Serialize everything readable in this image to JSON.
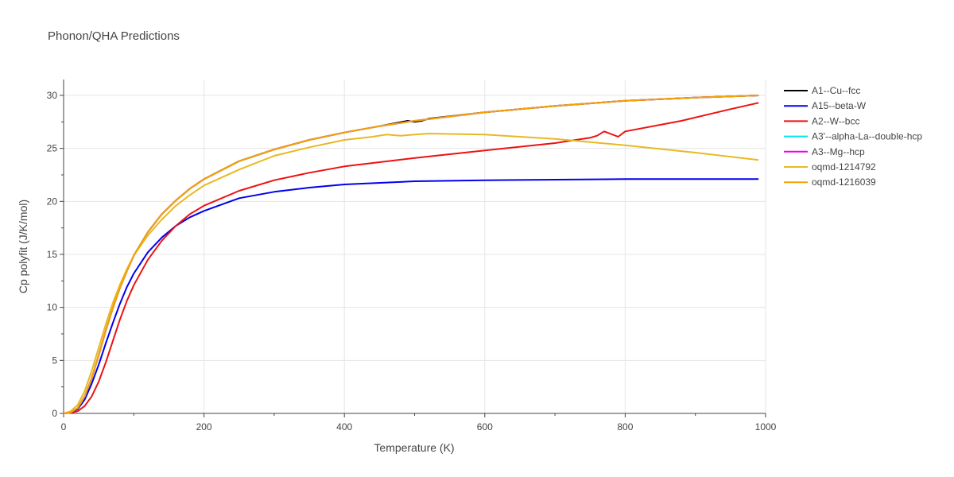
{
  "chart_data": {
    "type": "line",
    "title": "Phonon/QHA Predictions",
    "xlabel": "Temperature (K)",
    "ylabel": "Cp polyfit (J/K/mol)",
    "xlim": [
      0,
      1000
    ],
    "ylim": [
      0,
      31.5
    ],
    "xticks": [
      0,
      200,
      400,
      600,
      800,
      1000
    ],
    "yticks": [
      0,
      5,
      10,
      15,
      20,
      25,
      30
    ],
    "grid": true,
    "legend_position": "top-right",
    "series": [
      {
        "name": "A1--Cu--fcc",
        "color": "#000000",
        "points": [
          [
            0,
            0
          ],
          [
            10,
            0.1
          ],
          [
            20,
            0.5
          ],
          [
            30,
            1.6
          ],
          [
            40,
            3.3
          ],
          [
            50,
            5.5
          ],
          [
            60,
            7.8
          ],
          [
            70,
            9.9
          ],
          [
            80,
            11.8
          ],
          [
            90,
            13.4
          ],
          [
            100,
            14.9
          ],
          [
            120,
            17.1
          ],
          [
            140,
            18.8
          ],
          [
            160,
            20.1
          ],
          [
            180,
            21.2
          ],
          [
            200,
            22.1
          ],
          [
            250,
            23.8
          ],
          [
            300,
            24.9
          ],
          [
            350,
            25.8
          ],
          [
            400,
            26.5
          ],
          [
            450,
            27.1
          ],
          [
            490,
            27.6
          ],
          [
            500,
            27.5
          ],
          [
            510,
            27.6
          ],
          [
            520,
            27.8
          ],
          [
            600,
            28.4
          ],
          [
            700,
            29.0
          ],
          [
            800,
            29.5
          ],
          [
            900,
            29.8
          ],
          [
            990,
            30.0
          ]
        ]
      },
      {
        "name": "A15--beta-W",
        "color": "#0000ee",
        "points": [
          [
            0,
            0
          ],
          [
            10,
            0.1
          ],
          [
            20,
            0.4
          ],
          [
            30,
            1.3
          ],
          [
            40,
            2.8
          ],
          [
            50,
            4.6
          ],
          [
            60,
            6.6
          ],
          [
            70,
            8.5
          ],
          [
            80,
            10.3
          ],
          [
            90,
            11.9
          ],
          [
            100,
            13.2
          ],
          [
            120,
            15.2
          ],
          [
            140,
            16.6
          ],
          [
            160,
            17.7
          ],
          [
            180,
            18.5
          ],
          [
            200,
            19.1
          ],
          [
            250,
            20.3
          ],
          [
            300,
            20.9
          ],
          [
            350,
            21.3
          ],
          [
            400,
            21.6
          ],
          [
            500,
            21.9
          ],
          [
            600,
            22.0
          ],
          [
            700,
            22.05
          ],
          [
            800,
            22.1
          ],
          [
            900,
            22.1
          ],
          [
            990,
            22.1
          ]
        ]
      },
      {
        "name": "A2--W--bcc",
        "color": "#ee1111",
        "points": [
          [
            0,
            0
          ],
          [
            10,
            0.05
          ],
          [
            20,
            0.2
          ],
          [
            30,
            0.7
          ],
          [
            40,
            1.6
          ],
          [
            50,
            3.0
          ],
          [
            60,
            4.8
          ],
          [
            70,
            6.8
          ],
          [
            80,
            8.8
          ],
          [
            90,
            10.6
          ],
          [
            100,
            12.1
          ],
          [
            120,
            14.5
          ],
          [
            140,
            16.3
          ],
          [
            160,
            17.7
          ],
          [
            180,
            18.8
          ],
          [
            200,
            19.6
          ],
          [
            250,
            21.0
          ],
          [
            300,
            22.0
          ],
          [
            350,
            22.7
          ],
          [
            400,
            23.3
          ],
          [
            500,
            24.1
          ],
          [
            600,
            24.8
          ],
          [
            700,
            25.5
          ],
          [
            750,
            26.0
          ],
          [
            760,
            26.2
          ],
          [
            770,
            26.6
          ],
          [
            790,
            26.1
          ],
          [
            800,
            26.6
          ],
          [
            880,
            27.6
          ],
          [
            950,
            28.7
          ],
          [
            990,
            29.3
          ]
        ]
      },
      {
        "name": "A3'--alpha-La--double-hcp",
        "color": "#00e5ee",
        "points": [
          [
            0,
            0
          ],
          [
            10,
            0.1
          ],
          [
            20,
            0.5
          ],
          [
            30,
            1.6
          ],
          [
            40,
            3.3
          ],
          [
            50,
            5.5
          ],
          [
            60,
            7.8
          ],
          [
            70,
            9.9
          ],
          [
            80,
            11.8
          ],
          [
            90,
            13.4
          ],
          [
            100,
            14.9
          ],
          [
            120,
            17.1
          ],
          [
            140,
            18.8
          ],
          [
            160,
            20.1
          ],
          [
            180,
            21.2
          ],
          [
            200,
            22.1
          ],
          [
            250,
            23.8
          ],
          [
            300,
            24.9
          ],
          [
            350,
            25.8
          ],
          [
            400,
            26.5
          ],
          [
            450,
            27.1
          ],
          [
            500,
            27.6
          ],
          [
            600,
            28.4
          ],
          [
            700,
            29.0
          ],
          [
            800,
            29.5
          ],
          [
            900,
            29.8
          ],
          [
            990,
            30.0
          ]
        ]
      },
      {
        "name": "A3--Mg--hcp",
        "color": "#ee00ee",
        "points": [
          [
            0,
            0
          ],
          [
            10,
            0.1
          ],
          [
            20,
            0.5
          ],
          [
            30,
            1.6
          ],
          [
            40,
            3.3
          ],
          [
            50,
            5.5
          ],
          [
            60,
            7.8
          ],
          [
            70,
            9.9
          ],
          [
            80,
            11.8
          ],
          [
            90,
            13.4
          ],
          [
            100,
            14.9
          ],
          [
            120,
            17.1
          ],
          [
            140,
            18.8
          ],
          [
            160,
            20.1
          ],
          [
            180,
            21.2
          ],
          [
            200,
            22.1
          ],
          [
            250,
            23.8
          ],
          [
            300,
            24.9
          ],
          [
            350,
            25.8
          ],
          [
            400,
            26.5
          ],
          [
            450,
            27.1
          ],
          [
            500,
            27.6
          ],
          [
            600,
            28.4
          ],
          [
            700,
            29.0
          ],
          [
            800,
            29.5
          ],
          [
            900,
            29.8
          ],
          [
            990,
            30.0
          ]
        ]
      },
      {
        "name": "oqmd-1214792",
        "color": "#e8b923",
        "points": [
          [
            0,
            0
          ],
          [
            10,
            0.2
          ],
          [
            20,
            0.8
          ],
          [
            30,
            2.1
          ],
          [
            40,
            4.0
          ],
          [
            50,
            6.2
          ],
          [
            60,
            8.4
          ],
          [
            70,
            10.4
          ],
          [
            80,
            12.1
          ],
          [
            90,
            13.6
          ],
          [
            100,
            14.9
          ],
          [
            120,
            16.8
          ],
          [
            140,
            18.3
          ],
          [
            160,
            19.6
          ],
          [
            180,
            20.6
          ],
          [
            200,
            21.5
          ],
          [
            250,
            23.0
          ],
          [
            300,
            24.3
          ],
          [
            350,
            25.1
          ],
          [
            400,
            25.8
          ],
          [
            440,
            26.1
          ],
          [
            460,
            26.3
          ],
          [
            480,
            26.2
          ],
          [
            500,
            26.3
          ],
          [
            520,
            26.4
          ],
          [
            600,
            26.3
          ],
          [
            650,
            26.1
          ],
          [
            700,
            25.9
          ],
          [
            800,
            25.3
          ],
          [
            900,
            24.6
          ],
          [
            990,
            23.9
          ]
        ]
      },
      {
        "name": "oqmd-1216039",
        "color": "#f5a300",
        "points": [
          [
            0,
            0
          ],
          [
            10,
            0.1
          ],
          [
            20,
            0.5
          ],
          [
            30,
            1.6
          ],
          [
            40,
            3.3
          ],
          [
            50,
            5.5
          ],
          [
            60,
            7.8
          ],
          [
            70,
            9.9
          ],
          [
            80,
            11.8
          ],
          [
            90,
            13.4
          ],
          [
            100,
            14.9
          ],
          [
            120,
            17.1
          ],
          [
            140,
            18.8
          ],
          [
            160,
            20.1
          ],
          [
            180,
            21.2
          ],
          [
            200,
            22.1
          ],
          [
            250,
            23.8
          ],
          [
            300,
            24.9
          ],
          [
            350,
            25.8
          ],
          [
            400,
            26.5
          ],
          [
            450,
            27.1
          ],
          [
            500,
            27.6
          ],
          [
            600,
            28.4
          ],
          [
            700,
            29.0
          ],
          [
            800,
            29.5
          ],
          [
            900,
            29.8
          ],
          [
            990,
            30.0
          ]
        ]
      }
    ]
  }
}
